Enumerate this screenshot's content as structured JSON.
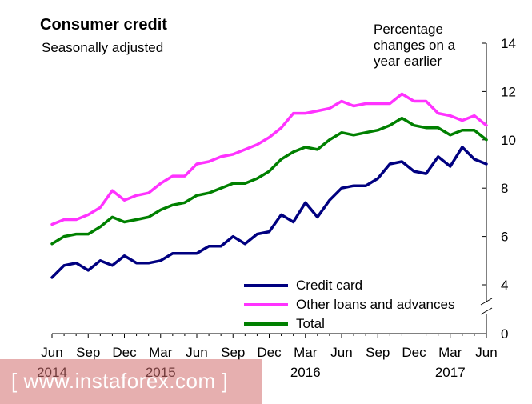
{
  "chart_data": {
    "type": "line",
    "title": "Consumer credit",
    "subtitle": "Seasonally adjusted",
    "ylabel": "Percentage changes on a year earlier",
    "ylim": [
      0,
      14
    ],
    "yticks": [
      0,
      4,
      6,
      8,
      10,
      12,
      14
    ],
    "axis_break": true,
    "x_start": "Jun 2014",
    "x_end": "Jun 2017",
    "month_labels": [
      "Jun",
      "Sep",
      "Dec",
      "Mar",
      "Jun",
      "Sep",
      "Dec",
      "Mar",
      "Jun",
      "Sep",
      "Dec",
      "Mar",
      "Jun"
    ],
    "year_labels": [
      {
        "label": "2014",
        "month_index": 0
      },
      {
        "label": "2015",
        "month_index": 9
      },
      {
        "label": "2016",
        "month_index": 21
      },
      {
        "label": "2017",
        "month_index": 33
      }
    ],
    "series": [
      {
        "name": "Credit card",
        "color": "#000080",
        "values": [
          4.3,
          4.8,
          4.9,
          4.6,
          5.0,
          4.8,
          5.2,
          4.9,
          4.9,
          5.0,
          5.3,
          5.3,
          5.3,
          5.6,
          5.6,
          6.0,
          5.7,
          6.1,
          6.2,
          6.9,
          6.6,
          7.4,
          6.8,
          7.5,
          8.0,
          8.1,
          8.1,
          8.4,
          9.0,
          9.1,
          8.7,
          8.6,
          9.3,
          8.9,
          9.7,
          9.2,
          9.0
        ]
      },
      {
        "name": "Other loans and advances",
        "color": "#ff33ff",
        "values": [
          6.5,
          6.7,
          6.7,
          6.9,
          7.2,
          7.9,
          7.5,
          7.7,
          7.8,
          8.2,
          8.5,
          8.5,
          9.0,
          9.1,
          9.3,
          9.4,
          9.6,
          9.8,
          10.1,
          10.5,
          11.1,
          11.1,
          11.2,
          11.3,
          11.6,
          11.4,
          11.5,
          11.5,
          11.5,
          11.9,
          11.6,
          11.6,
          11.1,
          11.0,
          10.8,
          11.0,
          10.6
        ]
      },
      {
        "name": "Total",
        "color": "#008000",
        "values": [
          5.7,
          6.0,
          6.1,
          6.1,
          6.4,
          6.8,
          6.6,
          6.7,
          6.8,
          7.1,
          7.3,
          7.4,
          7.7,
          7.8,
          8.0,
          8.2,
          8.2,
          8.4,
          8.7,
          9.2,
          9.5,
          9.7,
          9.6,
          10.0,
          10.3,
          10.2,
          10.3,
          10.4,
          10.6,
          10.9,
          10.6,
          10.5,
          10.5,
          10.2,
          10.4,
          10.4,
          10.0
        ]
      }
    ]
  },
  "watermark": "[ www.instaforex.com ]"
}
